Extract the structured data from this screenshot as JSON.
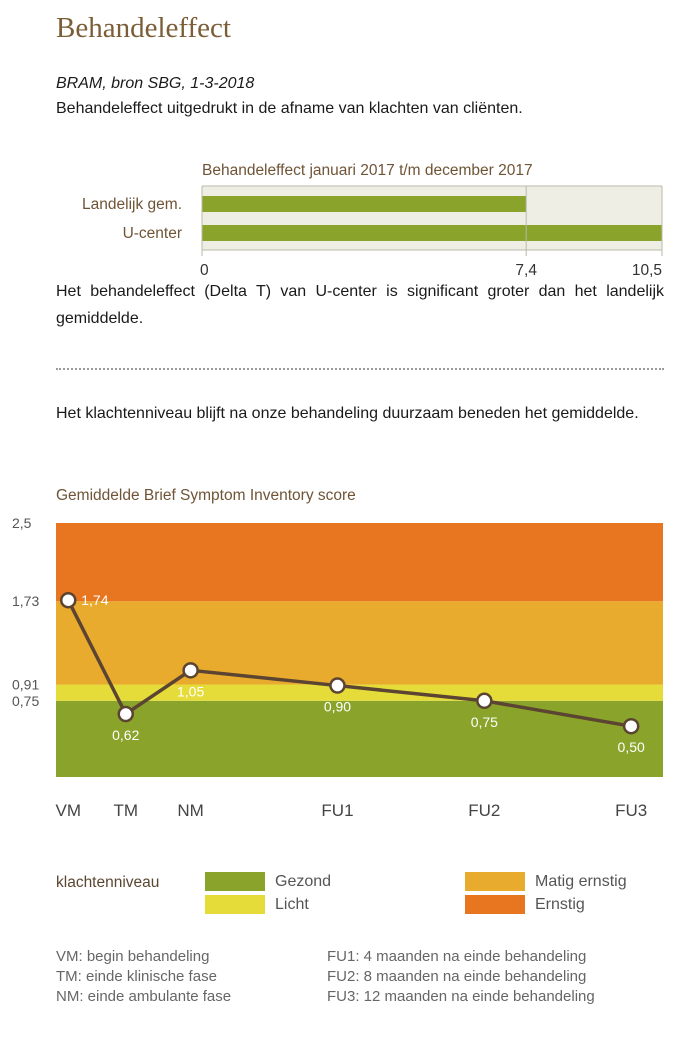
{
  "page": {
    "title": "Behandeleffect",
    "source": "BRAM, bron SBG, 1-3-2018",
    "intro": "Behandeleffect uitgedrukt in de afname van klachten van cliënten.",
    "paragraph1": "Het behandeleffect (Delta T) van U-center is significant groter dan het landelijk gemiddelde.",
    "paragraph2": "Het klachtenniveau blijft na onze behandeling duurzaam beneden het gemiddelde."
  },
  "colors": {
    "bar": "#8aa32a",
    "bar_bg": "#eeeee4",
    "line": "#5b4431",
    "gezond": "#8aa32a",
    "licht": "#e5dc3a",
    "matig": "#e9ab2e",
    "ernstig": "#e8751f"
  },
  "chart_data": [
    {
      "type": "bar",
      "orientation": "horizontal",
      "title": "Behandeleffect januari 2017 t/m december 2017",
      "categories": [
        "Landelijk gem.",
        "U-center"
      ],
      "values": [
        7.4,
        10.5
      ],
      "xlim": [
        0,
        10.5
      ],
      "ticks": [
        {
          "value": 0,
          "label": "0"
        },
        {
          "value": 7.4,
          "label": "7,4"
        },
        {
          "value": 10.5,
          "label": "10,5"
        }
      ]
    },
    {
      "type": "line",
      "title": "Gemiddelde Brief Symptom Inventory score",
      "categories": [
        "VM",
        "TM",
        "NM",
        "FU1",
        "FU2",
        "FU3"
      ],
      "x": [
        0,
        0.47,
        1.0,
        2.2,
        3.4,
        4.6
      ],
      "values": [
        1.74,
        0.62,
        1.05,
        0.9,
        0.75,
        0.5
      ],
      "value_labels": [
        "1,74",
        "0,62",
        "1,05",
        "0,90",
        "0,75",
        "0,50"
      ],
      "ylim": [
        0,
        2.5
      ],
      "yticks": [
        {
          "value": 2.5,
          "label": "2,5"
        },
        {
          "value": 1.73,
          "label": "1,73"
        },
        {
          "value": 0.91,
          "label": "0,91"
        },
        {
          "value": 0.75,
          "label": "0,75"
        }
      ],
      "bands": [
        {
          "name": "Gezond",
          "from": 0,
          "to": 0.75,
          "color_key": "gezond"
        },
        {
          "name": "Licht",
          "from": 0.75,
          "to": 0.91,
          "color_key": "licht"
        },
        {
          "name": "Matig ernstig",
          "from": 0.91,
          "to": 1.73,
          "color_key": "matig"
        },
        {
          "name": "Ernstig",
          "from": 1.73,
          "to": 2.5,
          "color_key": "ernstig"
        }
      ]
    }
  ],
  "legend": {
    "title": "klachtenniveau",
    "items": [
      {
        "label": "Gezond",
        "color_key": "gezond"
      },
      {
        "label": "Licht",
        "color_key": "licht"
      },
      {
        "label": "Matig ernstig",
        "color_key": "matig"
      },
      {
        "label": "Ernstig",
        "color_key": "ernstig"
      }
    ]
  },
  "abbreviations": {
    "left": [
      "VM: begin behandeling",
      "TM: einde klinische fase",
      "NM: einde ambulante fase"
    ],
    "right": [
      "FU1: 4 maanden na einde behandeling",
      "FU2: 8 maanden na einde behandeling",
      "FU3: 12 maanden na einde behandeling"
    ]
  }
}
